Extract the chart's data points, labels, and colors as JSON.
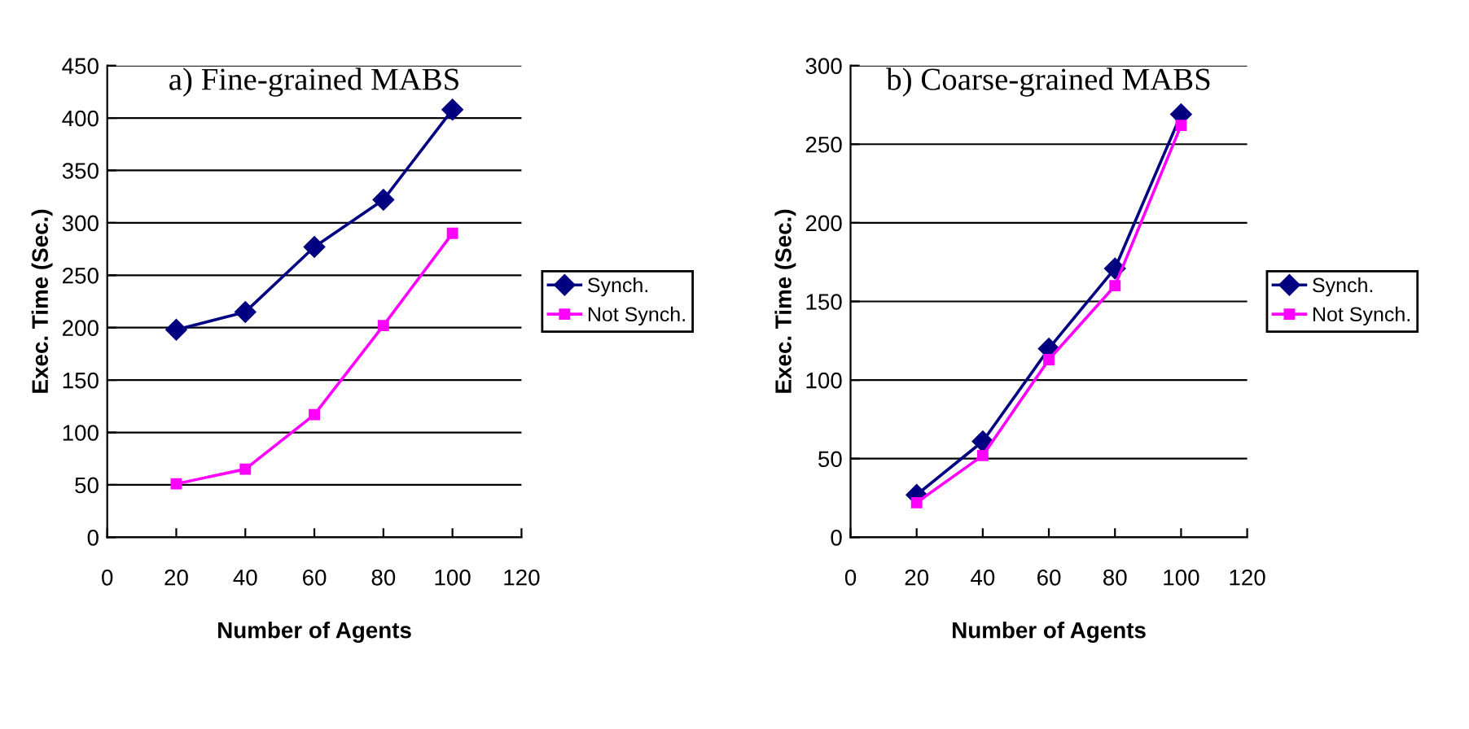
{
  "chart_data": [
    {
      "type": "line",
      "title": "a) Fine-grained MABS",
      "xlabel": "Number of Agents",
      "ylabel": "Exec. Time (Sec.)",
      "x": [
        20,
        40,
        60,
        80,
        100
      ],
      "series": [
        {
          "name": "Synch.",
          "color": "#000080",
          "marker": "diamond",
          "values": [
            198,
            215,
            277,
            322,
            408
          ]
        },
        {
          "name": "Not Synch.",
          "color": "#ff00ff",
          "marker": "square",
          "values": [
            51,
            65,
            117,
            202,
            290
          ]
        }
      ],
      "xlim": [
        0,
        120
      ],
      "xticks": [
        0,
        20,
        40,
        60,
        80,
        100,
        120
      ],
      "ylim": [
        0,
        450
      ],
      "yticks": [
        0,
        50,
        100,
        150,
        200,
        250,
        300,
        350,
        400,
        450
      ],
      "grid": "y",
      "legend": "right"
    },
    {
      "type": "line",
      "title": "b) Coarse-grained MABS",
      "xlabel": "Number of Agents",
      "ylabel": "Exec. Time (Sec.)",
      "x": [
        20,
        40,
        60,
        80,
        100
      ],
      "series": [
        {
          "name": "Synch.",
          "color": "#000080",
          "marker": "diamond",
          "values": [
            27,
            61,
            120,
            171,
            269
          ]
        },
        {
          "name": "Not Synch.",
          "color": "#ff00ff",
          "marker": "square",
          "values": [
            22,
            52,
            113,
            160,
            262
          ]
        }
      ],
      "xlim": [
        0,
        120
      ],
      "xticks": [
        0,
        20,
        40,
        60,
        80,
        100,
        120
      ],
      "ylim": [
        0,
        300
      ],
      "yticks": [
        0,
        50,
        100,
        150,
        200,
        250,
        300
      ],
      "grid": "y",
      "legend": "right"
    }
  ]
}
